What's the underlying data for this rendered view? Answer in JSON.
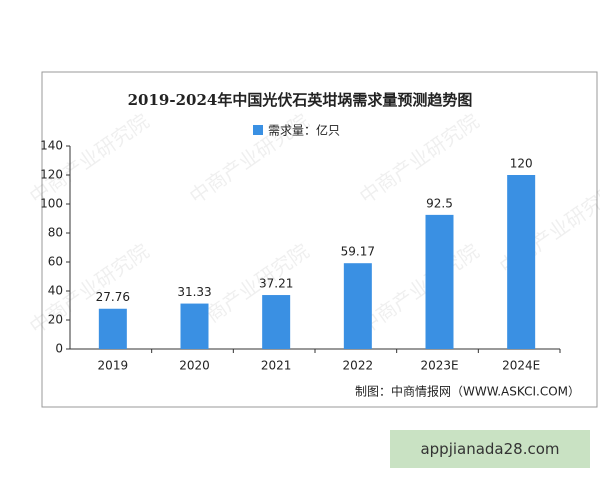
{
  "chart_data": {
    "type": "bar",
    "title": "2019-2024年中国光伏石英坩埚需求量预测趋势图",
    "categories": [
      "2019",
      "2020",
      "2021",
      "2022",
      "2023E",
      "2024E"
    ],
    "series": [
      {
        "name": "需求量：亿只",
        "color": "#3a90e3",
        "values": [
          27.76,
          31.33,
          37.21,
          59.17,
          92.5,
          120
        ]
      }
    ],
    "ylim": [
      0,
      140
    ],
    "yticks": [
      0,
      20,
      40,
      60,
      80,
      100,
      120,
      140
    ],
    "grid": false,
    "source": "制图：中商情报网（WWW.ASKCI.COM）",
    "watermark": "中商产业研究院"
  },
  "banner": {
    "text": "appjianada28.com"
  }
}
